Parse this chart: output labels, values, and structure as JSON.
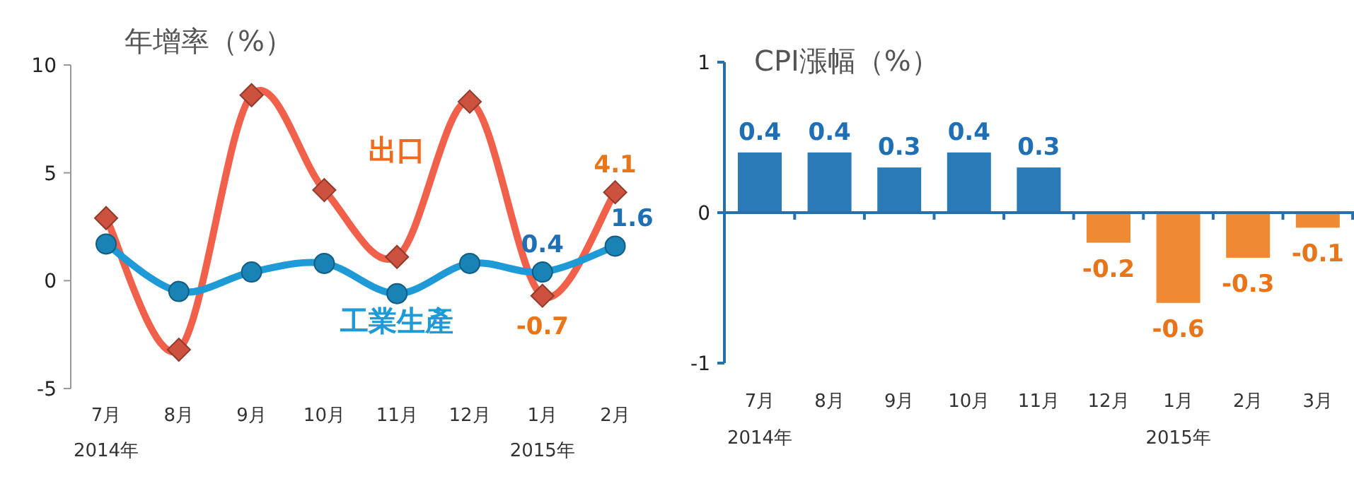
{
  "chart_data": [
    {
      "type": "line",
      "title": "年增率（%）",
      "categories": [
        "7月",
        "8月",
        "9月",
        "10月",
        "11月",
        "12月",
        "1月",
        "2月"
      ],
      "series": [
        {
          "name": "出口",
          "color": "#f0604a",
          "marker": "diamond",
          "values": [
            2.9,
            -3.2,
            8.6,
            4.2,
            1.1,
            8.3,
            -0.7,
            4.1
          ],
          "value_labels": [
            null,
            null,
            null,
            null,
            null,
            null,
            "-0.7",
            "4.1"
          ]
        },
        {
          "name": "工業生產",
          "color": "#1e9ad6",
          "marker": "circle",
          "values": [
            1.7,
            -0.5,
            0.4,
            0.8,
            -0.6,
            0.8,
            0.4,
            1.6
          ],
          "value_labels": [
            null,
            null,
            null,
            null,
            null,
            null,
            "0.4",
            "1.6"
          ]
        }
      ],
      "ylim": [
        -5,
        10
      ],
      "yticks": [
        -5,
        0,
        5,
        10
      ],
      "grid": false,
      "legend": false,
      "line_style": "solid",
      "annotations": [
        "2014年",
        "2015年"
      ]
    },
    {
      "type": "bar",
      "title": "CPI漲幅（%）",
      "categories": [
        "7月",
        "8月",
        "9月",
        "10月",
        "11月",
        "12月",
        "1月",
        "2月",
        "3月"
      ],
      "values": [
        0.4,
        0.4,
        0.3,
        0.4,
        0.3,
        -0.2,
        -0.6,
        -0.3,
        -0.1
      ],
      "colors": [
        "#2a7ab8",
        "#2a7ab8",
        "#2a7ab8",
        "#2a7ab8",
        "#2a7ab8",
        "#ef8a34",
        "#ef8a34",
        "#ef8a34",
        "#ef8a34"
      ],
      "data_labels": true,
      "ylim": [
        -1,
        1
      ],
      "yticks": [
        -1,
        0,
        1
      ],
      "grid": false,
      "ref_lines": [
        {
          "axis": "y",
          "value": 0,
          "color": "#2a6fa8"
        }
      ],
      "annotations": [
        "2014年",
        "2015年"
      ]
    }
  ]
}
